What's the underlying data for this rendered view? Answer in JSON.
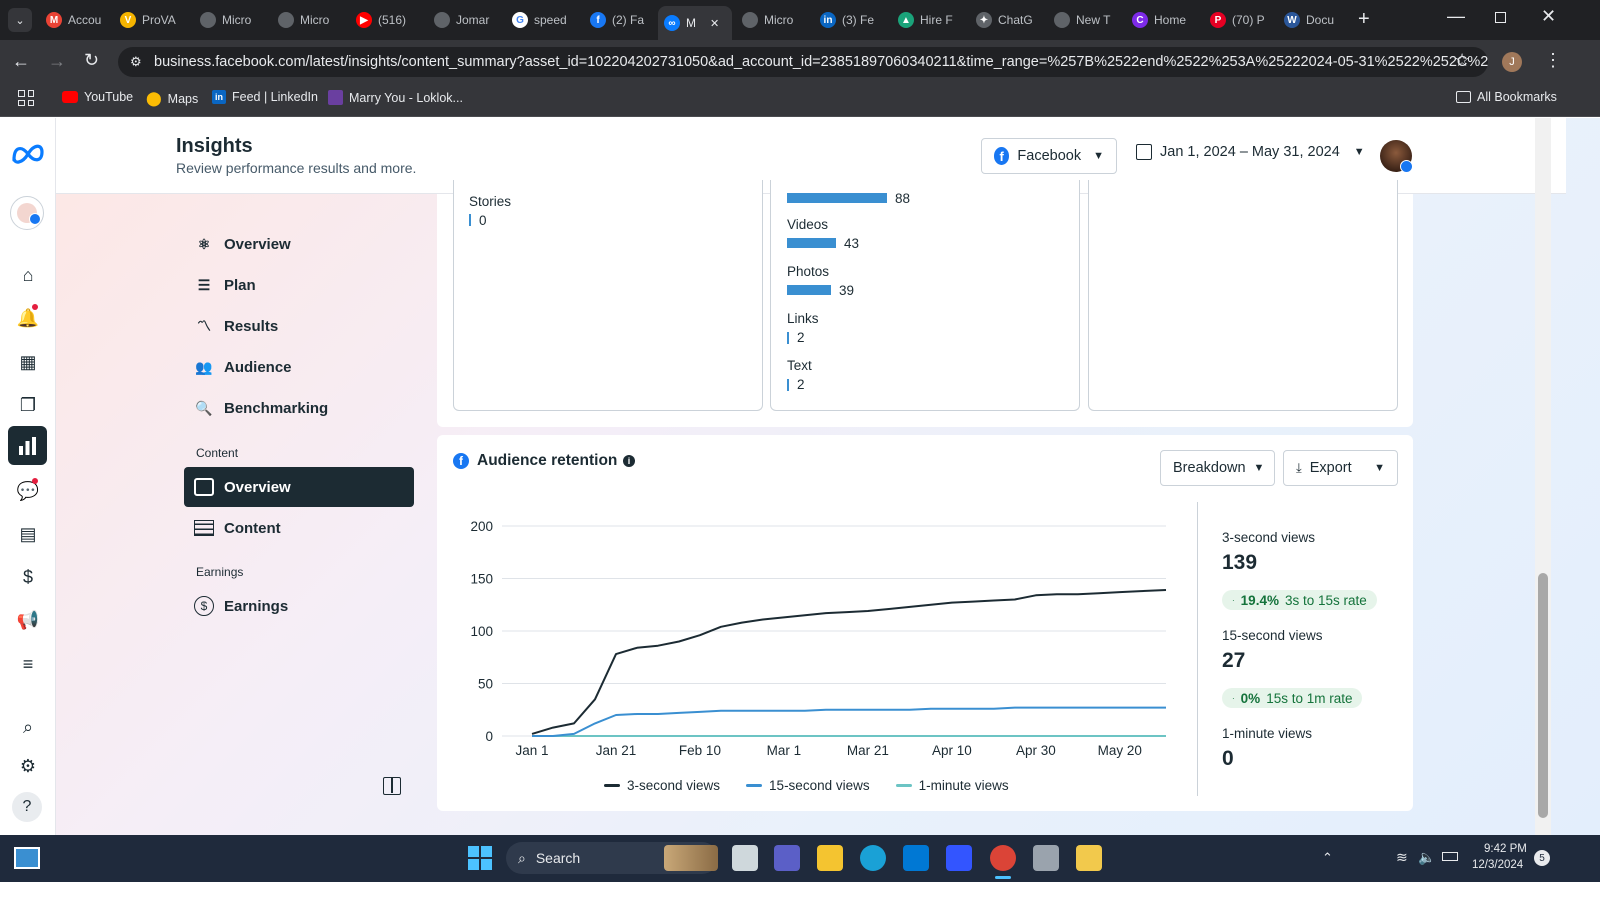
{
  "browser": {
    "tabs": [
      {
        "label": "Accou",
        "icon": "gmail-icon",
        "color": "#ea4335",
        "glyph": "M"
      },
      {
        "label": "ProVA",
        "icon": "prova-icon",
        "color": "#f5b400",
        "glyph": "V"
      },
      {
        "label": "Micro",
        "icon": "globe-icon",
        "color": "#5f6368",
        "glyph": ""
      },
      {
        "label": "Micro",
        "icon": "globe-icon",
        "color": "#5f6368",
        "glyph": ""
      },
      {
        "label": "(516) ",
        "icon": "youtube-icon",
        "color": "#ff0000",
        "glyph": "▶"
      },
      {
        "label": "Jomar",
        "icon": "globe-icon",
        "color": "#5f6368",
        "glyph": ""
      },
      {
        "label": "speed",
        "icon": "google-icon",
        "color": "#ffffff",
        "glyph": "G"
      },
      {
        "label": "(2) Fa",
        "icon": "facebook-icon",
        "color": "#1877f2",
        "glyph": "f"
      },
      {
        "label": "M",
        "icon": "meta-icon",
        "color": "#0a7cff",
        "glyph": "∞",
        "active": true
      },
      {
        "label": "Micro",
        "icon": "globe-icon",
        "color": "#5f6368",
        "glyph": ""
      },
      {
        "label": "(3) Fe",
        "icon": "linkedin-icon",
        "color": "#0a66c2",
        "glyph": "in"
      },
      {
        "label": "Hire F",
        "icon": "hire-icon",
        "color": "#1aa37a",
        "glyph": "▲"
      },
      {
        "label": "ChatG",
        "icon": "chatgpt-icon",
        "color": "#5f6368",
        "glyph": "✦"
      },
      {
        "label": "New T",
        "icon": "chrome-icon",
        "color": "#5f6368",
        "glyph": ""
      },
      {
        "label": "Home",
        "icon": "canva-icon",
        "color": "#7d2ae8",
        "glyph": "C"
      },
      {
        "label": "(70) P",
        "icon": "pinterest-icon",
        "color": "#e60023",
        "glyph": "P"
      },
      {
        "label": "Docu",
        "icon": "word-icon",
        "color": "#2b579a",
        "glyph": "W"
      }
    ],
    "url": "business.facebook.com/latest/insights/content_summary?asset_id=102204202731050&ad_account_id=23851897060340211&time_range=%257B%2522end%2522%253A%25222024-05-31%2522%252C%2522sta...",
    "bookmarks": [
      {
        "label": "YouTube",
        "icon": "youtube-icon"
      },
      {
        "label": "Maps",
        "icon": "maps-icon"
      },
      {
        "label": "Feed | LinkedIn",
        "icon": "linkedin-icon"
      },
      {
        "label": "Marry You - Loklok...",
        "icon": "loklok-icon"
      }
    ],
    "all_bookmarks": "All Bookmarks",
    "profile_initial": "J"
  },
  "header": {
    "title": "Insights",
    "subtitle": "Review performance results and more.",
    "platform_select": "Facebook",
    "date_range": "Jan 1, 2024 – May 31, 2024"
  },
  "sidebar": {
    "items": [
      {
        "label": "Overview",
        "icon": "overview-icon"
      },
      {
        "label": "Plan",
        "icon": "plan-icon"
      },
      {
        "label": "Results",
        "icon": "results-icon"
      },
      {
        "label": "Audience",
        "icon": "audience-icon"
      },
      {
        "label": "Benchmarking",
        "icon": "benchmarking-icon"
      }
    ],
    "content_section": "Content",
    "content_items": [
      {
        "label": "Overview",
        "icon": "content-overview-icon",
        "active": true
      },
      {
        "label": "Content",
        "icon": "content-table-icon"
      }
    ],
    "earnings_section": "Earnings",
    "earnings_items": [
      {
        "label": "Earnings",
        "icon": "dollar-icon"
      }
    ]
  },
  "content_types": {
    "left_card": {
      "label": "Stories",
      "value": "0"
    },
    "middle_card": [
      {
        "label": "",
        "value": "88",
        "num": 88
      },
      {
        "label": "Videos",
        "value": "43",
        "num": 43
      },
      {
        "label": "Photos",
        "value": "39",
        "num": 39
      },
      {
        "label": "Links",
        "value": "2",
        "num": 2
      },
      {
        "label": "Text",
        "value": "2",
        "num": 2
      }
    ]
  },
  "retention": {
    "title": "Audience retention",
    "breakdown_label": "Breakdown",
    "export_label": "Export",
    "metrics": [
      {
        "label": "3-second views",
        "value": "139",
        "rate_pct": "19.4%",
        "rate_text": "3s to 15s rate"
      },
      {
        "label": "15-second views",
        "value": "27",
        "rate_pct": "0%",
        "rate_text": "15s to 1m rate"
      },
      {
        "label": "1-minute views",
        "value": "0"
      }
    ]
  },
  "chart_data": {
    "type": "line",
    "x_labels": [
      "Jan 1",
      "Jan 21",
      "Feb 10",
      "Mar 1",
      "Mar 21",
      "Apr 10",
      "Apr 30",
      "May 20"
    ],
    "y_ticks": [
      0,
      50,
      100,
      150,
      200
    ],
    "ylim": [
      0,
      200
    ],
    "x": [
      "2024-01-01",
      "2024-01-06",
      "2024-01-11",
      "2024-01-16",
      "2024-01-21",
      "2024-01-26",
      "2024-01-31",
      "2024-02-05",
      "2024-02-10",
      "2024-02-15",
      "2024-02-20",
      "2024-02-25",
      "2024-03-01",
      "2024-03-06",
      "2024-03-11",
      "2024-03-16",
      "2024-03-21",
      "2024-03-26",
      "2024-03-31",
      "2024-04-05",
      "2024-04-10",
      "2024-04-15",
      "2024-04-20",
      "2024-04-25",
      "2024-04-30",
      "2024-05-05",
      "2024-05-10",
      "2024-05-15",
      "2024-05-20",
      "2024-05-25",
      "2024-05-31"
    ],
    "series": [
      {
        "name": "3-second views",
        "color": "#1c2b33",
        "values": [
          2,
          8,
          12,
          35,
          78,
          84,
          86,
          90,
          96,
          104,
          108,
          111,
          113,
          115,
          117,
          118,
          119,
          121,
          123,
          125,
          127,
          128,
          129,
          130,
          134,
          135,
          135,
          136,
          137,
          138,
          139
        ]
      },
      {
        "name": "15-second views",
        "color": "#3a8fd1",
        "values": [
          0,
          0,
          2,
          12,
          20,
          21,
          21,
          22,
          23,
          24,
          24,
          24,
          24,
          24,
          25,
          25,
          25,
          25,
          25,
          26,
          26,
          26,
          26,
          27,
          27,
          27,
          27,
          27,
          27,
          27,
          27
        ]
      },
      {
        "name": "1-minute views",
        "color": "#6cc4c4",
        "values": [
          0,
          0,
          0,
          0,
          0,
          0,
          0,
          0,
          0,
          0,
          0,
          0,
          0,
          0,
          0,
          0,
          0,
          0,
          0,
          0,
          0,
          0,
          0,
          0,
          0,
          0,
          0,
          0,
          0,
          0,
          0
        ]
      }
    ],
    "legend": [
      "3-second views",
      "15-second views",
      "1-minute views"
    ],
    "legend_position": "bottom",
    "grid": true
  },
  "taskbar": {
    "search_label": "Search",
    "time": "9:42 PM",
    "date": "12/3/2024",
    "notification_count": "5"
  }
}
